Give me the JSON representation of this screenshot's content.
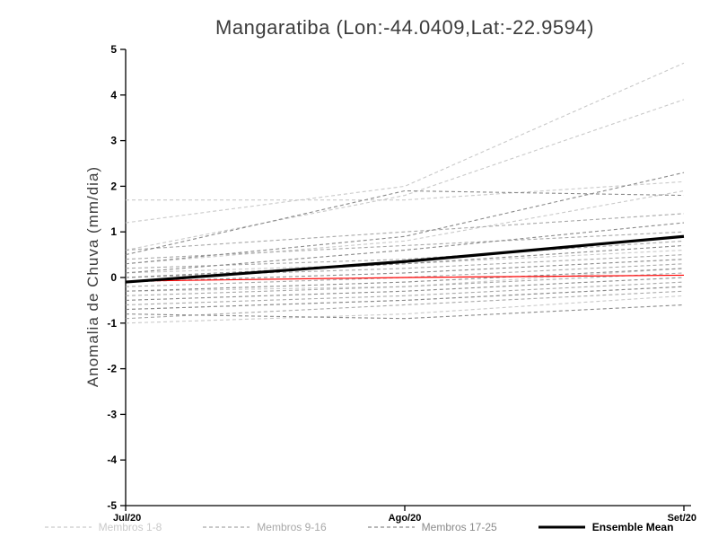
{
  "chart_data": {
    "type": "line",
    "title": "Mangaratiba (Lon:-44.0409,Lat:-22.9594)",
    "ylabel": "Anomalia de Chuva (mm/dia)",
    "x_ticklabels": [
      "Jul/20",
      "Ago/20",
      "Set/20"
    ],
    "ylim": [
      -5,
      5
    ],
    "yticks": [
      -5,
      -4,
      -3,
      -2,
      -1,
      0,
      1,
      2,
      3,
      4,
      5
    ],
    "grid": false,
    "legend_position": "bottom",
    "groups": [
      {
        "name": "Membros 1-8",
        "color": "#c9c9c9",
        "dashed": true,
        "members": [
          [
            1.7,
            1.7,
            2.1
          ],
          [
            1.2,
            2.0,
            4.7
          ],
          [
            0.6,
            1.8,
            3.9
          ],
          [
            0.3,
            0.8,
            1.9
          ],
          [
            0.1,
            0.3,
            0.6
          ],
          [
            -0.3,
            -0.2,
            0.2
          ],
          [
            -0.7,
            -0.5,
            -0.2
          ],
          [
            -1.0,
            -0.8,
            -0.4
          ]
        ]
      },
      {
        "name": "Membros 9-16",
        "color": "#a8a8a8",
        "dashed": true,
        "members": [
          [
            0.6,
            1.0,
            1.4
          ],
          [
            0.4,
            0.7,
            1.0
          ],
          [
            0.2,
            0.4,
            0.8
          ],
          [
            0.0,
            0.2,
            0.5
          ],
          [
            -0.2,
            0.0,
            0.3
          ],
          [
            -0.4,
            -0.2,
            0.1
          ],
          [
            -0.6,
            -0.4,
            -0.1
          ],
          [
            -0.9,
            -0.6,
            -0.3
          ]
        ]
      },
      {
        "name": "Membros 17-25",
        "color": "#8a8a8a",
        "dashed": true,
        "members": [
          [
            0.5,
            1.9,
            1.8
          ],
          [
            0.3,
            0.9,
            2.3
          ],
          [
            0.1,
            0.6,
            1.2
          ],
          [
            0.0,
            0.3,
            0.7
          ],
          [
            -0.1,
            0.1,
            0.4
          ],
          [
            -0.3,
            -0.1,
            0.2
          ],
          [
            -0.5,
            -0.3,
            0.0
          ],
          [
            -0.7,
            -0.5,
            -0.2
          ],
          [
            -0.8,
            -0.9,
            -0.6
          ]
        ]
      }
    ],
    "reference": {
      "color": "#ff0000",
      "values": [
        -0.08,
        0.0,
        0.05
      ]
    },
    "ensemble_mean": {
      "name": "Ensemble Mean",
      "color": "#000000",
      "values": [
        -0.1,
        0.35,
        0.9
      ]
    }
  }
}
